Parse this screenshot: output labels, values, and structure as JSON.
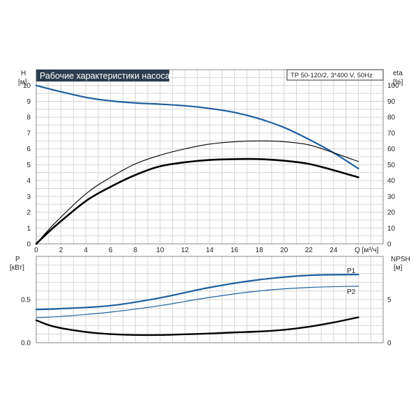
{
  "chart_data": [
    {
      "type": "line",
      "title": "Рабочие характеристики насоса",
      "subtitle": "TP 50-120/2, 3*400 V, 50Hz",
      "xlabel": "Q [м³/ч]",
      "ylabel": "H",
      "ylabel_unit": "[м]",
      "y2label": "eta",
      "y2label_unit": "[%]",
      "xlim": [
        0,
        28
      ],
      "ylim": [
        0,
        11
      ],
      "y2lim": [
        0,
        110
      ],
      "x_ticks": [
        "0",
        "2",
        "4",
        "6",
        "8",
        "10",
        "12",
        "14",
        "16",
        "18",
        "20",
        "22",
        "24"
      ],
      "y_ticks": [
        "0",
        "1",
        "2",
        "3",
        "4",
        "5",
        "6",
        "7",
        "8",
        "9",
        "10"
      ],
      "y2_ticks": [
        "0",
        "10",
        "20",
        "30",
        "40",
        "50",
        "60",
        "70",
        "80",
        "90",
        "100"
      ],
      "grid": true,
      "series": [
        {
          "name": "",
          "axis": "left",
          "color": "#1f5fa0",
          "x": [
            0,
            1.5,
            4,
            6,
            8,
            10,
            12,
            14,
            16,
            18,
            20,
            22,
            24,
            26
          ],
          "y": [
            10.0,
            9.7,
            9.25,
            9.03,
            8.9,
            8.82,
            8.72,
            8.55,
            8.3,
            7.9,
            7.35,
            6.6,
            5.75,
            4.75
          ]
        },
        {
          "name": "",
          "axis": "right",
          "color": "#000000",
          "x": [
            0,
            1.5,
            4,
            6,
            8,
            10,
            12,
            14,
            16,
            18,
            20,
            22,
            24,
            26
          ],
          "y": [
            0,
            11,
            27,
            36,
            43.5,
            49,
            51.5,
            53,
            53.5,
            53.5,
            52.5,
            50.5,
            46.5,
            42
          ]
        },
        {
          "name": "",
          "axis": "right",
          "color": "#000000",
          "x": [
            0,
            1.5,
            4,
            6,
            8,
            10,
            12,
            14,
            16,
            18,
            20,
            22,
            24,
            26
          ],
          "y": [
            0,
            13,
            31.5,
            42,
            50.5,
            56,
            60,
            63,
            64.5,
            65,
            64.5,
            62.5,
            57.5,
            52
          ]
        }
      ]
    },
    {
      "type": "line",
      "xlim": [
        0,
        28
      ],
      "ylabel": "P",
      "ylabel_unit": "[кВт]",
      "y2label": "NPSH",
      "y2label_unit": "[м]",
      "ylim": [
        0,
        1.0
      ],
      "y2lim": [
        0,
        10
      ],
      "y_ticks": [
        "0.0",
        "0.5"
      ],
      "y2_ticks": [
        "0",
        "5"
      ],
      "grid": true,
      "series": [
        {
          "name": "P1",
          "axis": "left",
          "color": "#1f5fa0",
          "x": [
            0,
            2,
            6,
            10,
            14,
            18,
            22,
            26
          ],
          "y": [
            0.385,
            0.395,
            0.43,
            0.52,
            0.64,
            0.73,
            0.78,
            0.79
          ]
        },
        {
          "name": "P2",
          "axis": "left",
          "color": "#1f5fa0",
          "x": [
            0,
            2,
            6,
            10,
            14,
            18,
            22,
            26
          ],
          "y": [
            0.29,
            0.305,
            0.355,
            0.43,
            0.525,
            0.6,
            0.64,
            0.655
          ]
        },
        {
          "name": "",
          "axis": "right",
          "color": "#000000",
          "x": [
            0,
            1.5,
            4,
            6,
            8,
            10,
            12,
            14,
            16,
            18,
            20,
            22,
            24,
            26
          ],
          "y": [
            2.6,
            1.85,
            1.25,
            1.0,
            0.9,
            0.9,
            0.98,
            1.07,
            1.2,
            1.3,
            1.5,
            1.85,
            2.35,
            2.95
          ]
        }
      ]
    }
  ]
}
